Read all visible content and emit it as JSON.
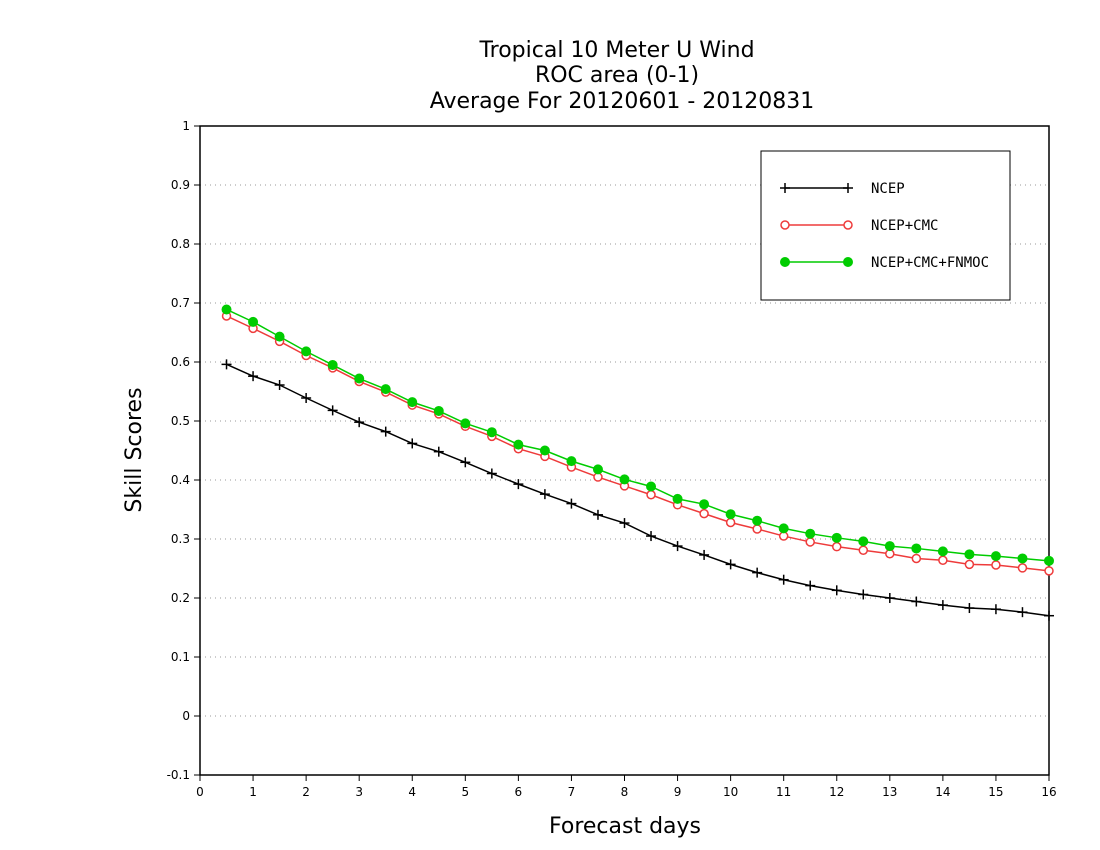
{
  "chart_data": {
    "type": "line",
    "title": [
      "Tropical 10 Meter U Wind",
      "ROC area (0-1)",
      "Average For 20120601 - 20120831"
    ],
    "xlabel": "Forecast days",
    "ylabel": "Skill Scores",
    "xlim": [
      0,
      16
    ],
    "ylim": [
      -0.1,
      1
    ],
    "xticks": [
      "0",
      "1",
      "2",
      "3",
      "4",
      "5",
      "6",
      "7",
      "8",
      "9",
      "10",
      "11",
      "12",
      "13",
      "14",
      "15",
      "16"
    ],
    "yticks": [
      "-0.1",
      "0",
      "0.1",
      "0.2",
      "0.3",
      "0.4",
      "0.5",
      "0.6",
      "0.7",
      "0.8",
      "0.9",
      "1"
    ],
    "grid": "dotted horizontal",
    "legend_position": "top-right",
    "x": [
      0.5,
      1,
      1.5,
      2,
      2.5,
      3,
      3.5,
      4,
      4.5,
      5,
      5.5,
      6,
      6.5,
      7,
      7.5,
      8,
      8.5,
      9,
      9.5,
      10,
      10.5,
      11,
      11.5,
      12,
      12.5,
      13,
      13.5,
      14,
      14.5,
      15,
      15.5,
      16
    ],
    "series": [
      {
        "name": "NCEP",
        "color": "#000000",
        "marker": "plus",
        "values": [
          0.596,
          0.576,
          0.561,
          0.539,
          0.518,
          0.498,
          0.482,
          0.462,
          0.448,
          0.43,
          0.411,
          0.393,
          0.376,
          0.36,
          0.341,
          0.327,
          0.305,
          0.288,
          0.273,
          0.257,
          0.243,
          0.231,
          0.221,
          0.213,
          0.206,
          0.2,
          0.194,
          0.188,
          0.183,
          0.181,
          0.176,
          0.17
        ]
      },
      {
        "name": "NCEP+CMC",
        "color": "#ee3b3b",
        "marker": "open-circle",
        "values": [
          0.678,
          0.657,
          0.635,
          0.611,
          0.59,
          0.567,
          0.549,
          0.527,
          0.512,
          0.491,
          0.474,
          0.453,
          0.44,
          0.422,
          0.405,
          0.39,
          0.375,
          0.358,
          0.343,
          0.328,
          0.317,
          0.305,
          0.295,
          0.287,
          0.281,
          0.275,
          0.267,
          0.264,
          0.257,
          0.256,
          0.251,
          0.246
        ]
      },
      {
        "name": "NCEP+CMC+FNMOC",
        "color": "#00cc00",
        "marker": "filled-circle",
        "values": [
          0.689,
          0.668,
          0.643,
          0.618,
          0.595,
          0.572,
          0.554,
          0.532,
          0.517,
          0.496,
          0.481,
          0.46,
          0.45,
          0.432,
          0.418,
          0.401,
          0.389,
          0.368,
          0.359,
          0.342,
          0.331,
          0.318,
          0.309,
          0.302,
          0.296,
          0.288,
          0.284,
          0.279,
          0.274,
          0.271,
          0.267,
          0.263
        ]
      }
    ]
  }
}
